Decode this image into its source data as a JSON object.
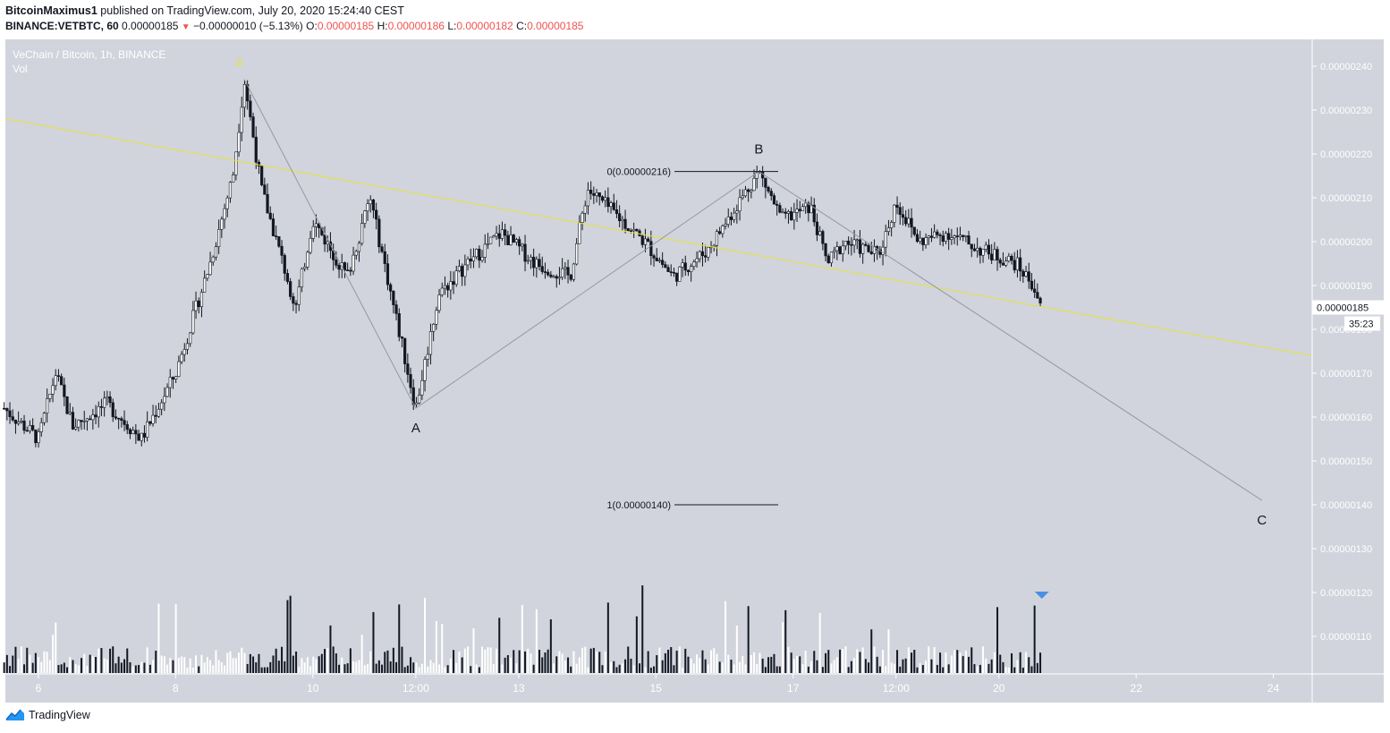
{
  "header": {
    "author": "BitcoinMaximus1",
    "published_text": "published on TradingView.com, July 20, 2020 15:24:40 CEST",
    "symbol": "BINANCE:VETBTC, 60",
    "last_price": "0.00000185",
    "change": "−0.00000010 (−5.13%)",
    "o_label": "O:",
    "o": "0.00000185",
    "h_label": "H:",
    "h": "0.00000186",
    "l_label": "L:",
    "l": "0.00000182",
    "c_label": "C:",
    "c": "0.00000185"
  },
  "legend": {
    "title": "VeChain / Bitcoin, 1h, BINANCE",
    "vol": "Vol"
  },
  "annotations": {
    "wave3_label": "③",
    "a_label": "A",
    "b_label": "B",
    "c_label": "C",
    "fib_top": "0(0.00000216)",
    "fib_bottom": "1(0.00000140)"
  },
  "price_badge": "0.00000185",
  "countdown_badge": "35:23",
  "footer": {
    "brand": "TradingView"
  },
  "colors": {
    "plot_bg": "#d1d4dc",
    "yellow_line": "#e7e23b",
    "grey_line": "#9598a1",
    "down_color": "#ef5350",
    "vol_marker": "#2962ff"
  },
  "chart_data": {
    "type": "candlestick",
    "title": "VeChain / Bitcoin, 1h, BINANCE",
    "y_axis": {
      "ticks": [
        "0.00000240",
        "0.00000230",
        "0.00000220",
        "0.00000210",
        "0.00000200",
        "0.00000190",
        "0.00000180",
        "0.00000170",
        "0.00000160",
        "0.00000150",
        "0.00000140",
        "0.00000130",
        "0.00000120",
        "0.00000110"
      ],
      "range": [
        1.05e-06,
        2.43e-06
      ]
    },
    "x_axis": {
      "ticks": [
        "6",
        "8",
        "10",
        "12:00",
        "13",
        "15",
        "17",
        "12:00",
        "20",
        "22",
        "24"
      ]
    },
    "price_path": [
      [
        "Jul 5 12:00",
        1.62e-06
      ],
      [
        "Jul 6 00:00",
        1.55e-06
      ],
      [
        "Jul 6 06:00",
        1.7e-06
      ],
      [
        "Jul 6 12:00",
        1.58e-06
      ],
      [
        "Jul 7 00:00",
        1.63e-06
      ],
      [
        "Jul 7 12:00",
        1.55e-06
      ],
      [
        "Jul 8 00:00",
        1.7e-06
      ],
      [
        "Jul 8 12:00",
        1.95e-06
      ],
      [
        "Jul 8 20:00",
        2.15e-06
      ],
      [
        "Jul 9 00:00",
        2.37e-06
      ],
      [
        "Jul 9 06:00",
        2.12e-06
      ],
      [
        "Jul 9 18:00",
        1.85e-06
      ],
      [
        "Jul 10 00:00",
        2.05e-06
      ],
      [
        "Jul 10 12:00",
        1.92e-06
      ],
      [
        "Jul 10 20:00",
        2.1e-06
      ],
      [
        "Jul 11 06:00",
        1.8e-06
      ],
      [
        "Jul 11 12:00",
        1.62e-06
      ],
      [
        "Jul 11 20:00",
        1.88e-06
      ],
      [
        "Jul 12 06:00",
        1.95e-06
      ],
      [
        "Jul 12 18:00",
        2.02e-06
      ],
      [
        "Jul 13 06:00",
        1.95e-06
      ],
      [
        "Jul 13 18:00",
        1.92e-06
      ],
      [
        "Jul 14 00:00",
        2.12e-06
      ],
      [
        "Jul 14 12:00",
        2.05e-06
      ],
      [
        "Jul 14 20:00",
        2e-06
      ],
      [
        "Jul 15 06:00",
        1.92e-06
      ],
      [
        "Jul 15 18:00",
        1.98e-06
      ],
      [
        "Jul 16 06:00",
        2.1e-06
      ],
      [
        "Jul 16 12:00",
        2.16e-06
      ],
      [
        "Jul 16 20:00",
        2.05e-06
      ],
      [
        "Jul 17 06:00",
        2.08e-06
      ],
      [
        "Jul 17 12:00",
        1.95e-06
      ],
      [
        "Jul 17 18:00",
        2e-06
      ],
      [
        "Jul 18 06:00",
        1.97e-06
      ],
      [
        "Jul 18 12:00",
        2.09e-06
      ],
      [
        "Jul 18 20:00",
        2e-06
      ],
      [
        "Jul 19 06:00",
        2.02e-06
      ],
      [
        "Jul 19 18:00",
        1.98e-06
      ],
      [
        "Jul 20 06:00",
        1.95e-06
      ],
      [
        "Jul 20 12:00",
        1.9e-06
      ],
      [
        "Jul 20 15:00",
        1.85e-06
      ]
    ],
    "last_close": 1.85e-06,
    "wave_points": [
      {
        "label": "3",
        "time": "Jul 9 00:00",
        "price": 2.37e-06
      },
      {
        "label": "A",
        "time": "Jul 11 12:00",
        "price": 1.62e-06
      },
      {
        "label": "B",
        "time": "Jul 16 12:00",
        "price": 2.16e-06
      },
      {
        "label": "C",
        "time": "Jul 23 20:00",
        "price": 1.41e-06
      }
    ],
    "fib_levels": [
      {
        "ratio": 0,
        "price": 2.16e-06
      },
      {
        "ratio": 1,
        "price": 1.4e-06
      }
    ],
    "trendline_yellow": {
      "start_price": 2.28e-06,
      "through": "Jul 9 00:00 @ 0.00000237",
      "end_price": 1.74e-06
    },
    "grid": false,
    "legend": "top-left"
  }
}
